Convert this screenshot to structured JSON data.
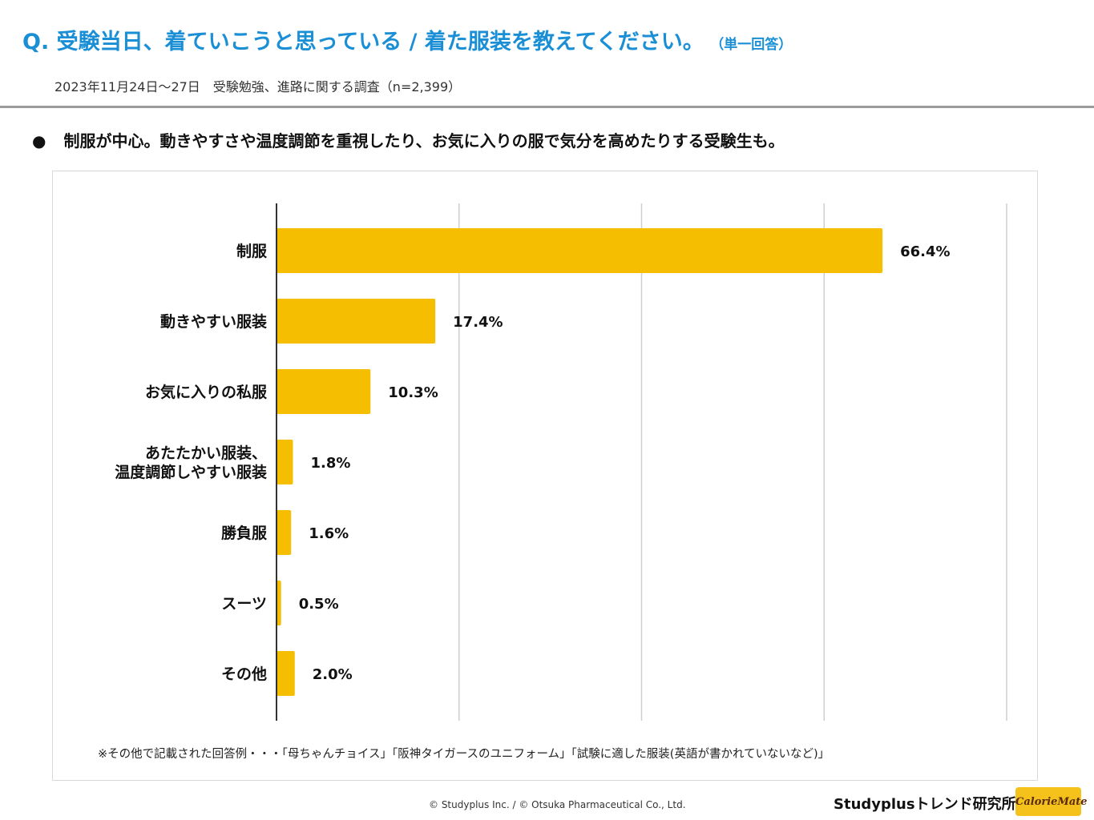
{
  "header": {
    "title": "Q. 受験当日、着ていこうと思っている / 着た服装を教えてください。",
    "answer_type": "（単一回答）",
    "survey_info": "2023年11月24日～27日　受験勉強、進路に関する調査（n=2,399）"
  },
  "finding": {
    "bullet": "●",
    "text": "制服が中心。動きやすさや温度調節を重視したり、お気に入りの服で気分を高めたりする受験生も。"
  },
  "chart_data": {
    "type": "bar",
    "orientation": "horizontal",
    "categories": [
      "制服",
      "動きやすい服装",
      "お気に入りの私服",
      "あたたかい服装、\n温度調節しやすい服装",
      "勝負服",
      "スーツ",
      "その他"
    ],
    "values": [
      66.4,
      17.4,
      10.3,
      1.8,
      1.6,
      0.5,
      2.0
    ],
    "value_labels": [
      "66.4%",
      "17.4%",
      "10.3%",
      "1.8%",
      "1.6%",
      "0.5%",
      "2.0%"
    ],
    "xlim": [
      0,
      80
    ],
    "gridlines": [
      20,
      40,
      60,
      80
    ],
    "bar_color": "#f5be00",
    "grid_color": "#cfcfcf"
  },
  "footnote": "※その他で記載された回答例・・・「母ちゃんチョイス」「阪神タイガースのユニフォーム」「試験に適した服装(英語が書かれていないなど)」",
  "footer": {
    "copyright": "© Studyplus Inc.  / © Otsuka Pharmaceutical Co., Ltd.",
    "brand": "Studyplusトレンド研究所",
    "logo_text": "CalorieMate"
  }
}
